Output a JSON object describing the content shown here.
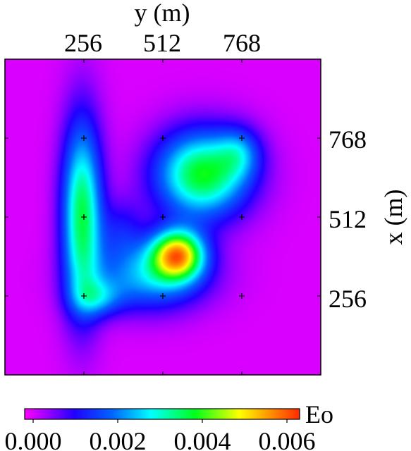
{
  "chart_data": {
    "type": "heatmap",
    "title": "",
    "xlabel": "y (m)",
    "ylabel": "x (m)",
    "x_axis_position": "top",
    "y_axis_position": "right",
    "xlim": [
      0,
      1024
    ],
    "ylim": [
      0,
      1024
    ],
    "x_ticks": [
      256,
      512,
      768
    ],
    "x_tick_labels": [
      "256",
      "512",
      "768"
    ],
    "y_ticks": [
      256,
      512,
      768
    ],
    "y_tick_labels": [
      "256",
      "512",
      "768"
    ],
    "grid": false,
    "colormap": "gist_rainbow_r",
    "colorbar": {
      "label": "Eo",
      "orientation": "horizontal",
      "placement": "bottom",
      "range": [
        -0.0002,
        0.0063
      ],
      "ticks": [
        0.0,
        0.002,
        0.004,
        0.006
      ],
      "tick_labels": [
        "0.000",
        "0.002",
        "0.004",
        "0.006"
      ]
    },
    "field_peak": {
      "y": 560,
      "x": 380,
      "value": 0.0061
    },
    "field_background_value": 0.0,
    "markers": [
      {
        "y": 256,
        "x": 768
      },
      {
        "y": 512,
        "x": 768
      },
      {
        "y": 768,
        "x": 768
      },
      {
        "y": 256,
        "x": 512
      },
      {
        "y": 512,
        "x": 512
      },
      {
        "y": 768,
        "x": 512
      },
      {
        "y": 256,
        "x": 256
      },
      {
        "y": 512,
        "x": 256
      },
      {
        "y": 768,
        "x": 256
      }
    ]
  }
}
